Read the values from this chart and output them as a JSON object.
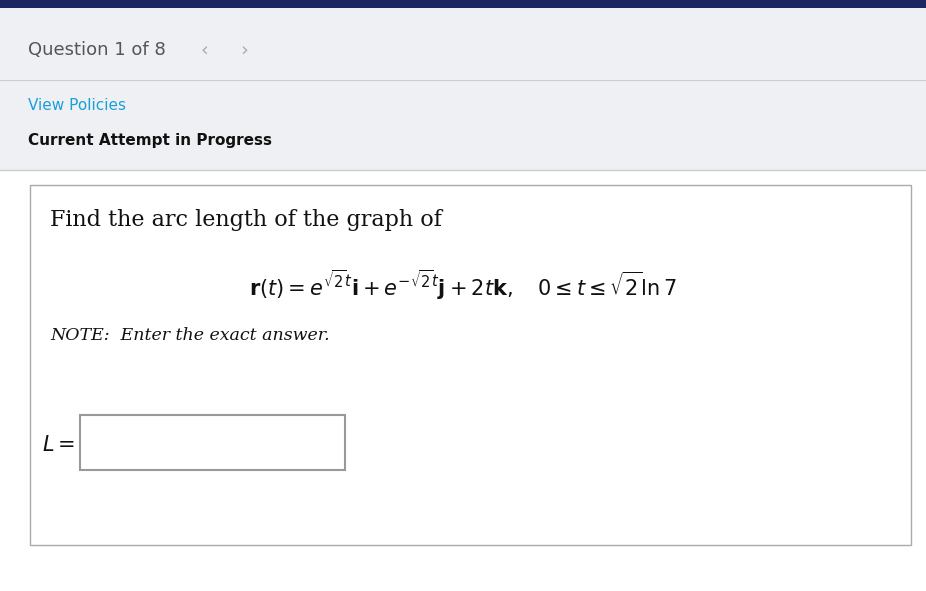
{
  "fig_width": 9.26,
  "fig_height": 5.91,
  "dpi": 100,
  "bg_color": "#eef0f3",
  "white": "#ffffff",
  "header_bg": "#eef0f3",
  "content_bg": "#ffffff",
  "dark_navy": "#1c2660",
  "separator_color": "#cccccc",
  "question_text": "Question 1 of 8",
  "question_color": "#555555",
  "nav_lt": "‹",
  "nav_gt": "›",
  "nav_color": "#aaaaaa",
  "view_policies_text": "View Policies",
  "view_policies_color": "#1a9edb",
  "current_attempt_text": "Current Attempt in Progress",
  "current_attempt_color": "#111111",
  "find_arc_text": "Find the arc length of the graph of",
  "note_text": "NOTE:  Enter the exact answer.",
  "L_label": "$L =$"
}
